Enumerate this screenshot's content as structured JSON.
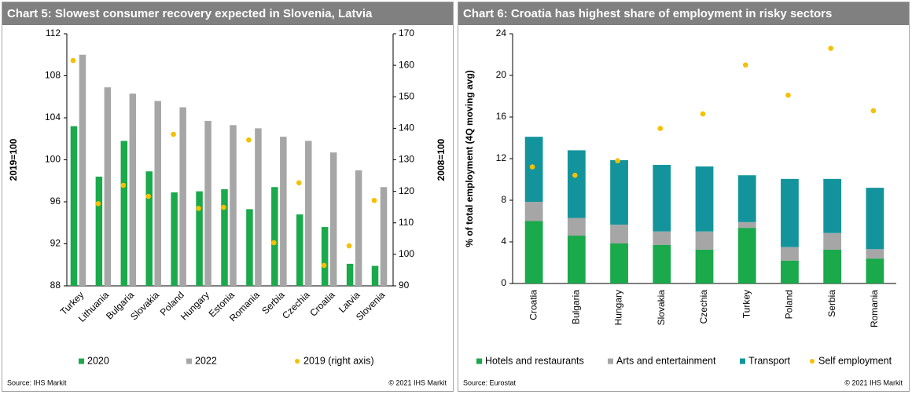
{
  "chart_data": [
    {
      "type": "bar",
      "title": "Chart 5: Slowest consumer recovery expected in Slovenia, Latvia",
      "ylabel": "2019=100",
      "y2label": "2008=100",
      "categories": [
        "Turkey",
        "Lithuania",
        "Bulgaria",
        "Slovakia",
        "Poland",
        "Hungary",
        "Estonia",
        "Romania",
        "Serbia",
        "Czechia",
        "Croatia",
        "Latvia",
        "Slovenia"
      ],
      "series": [
        {
          "name": "2020",
          "type": "bar",
          "color": "#1aa94b",
          "values": [
            103.2,
            98.4,
            101.8,
            98.9,
            96.9,
            97.0,
            97.2,
            95.3,
            97.4,
            94.8,
            93.6,
            90.1,
            89.9
          ]
        },
        {
          "name": "2022",
          "type": "bar",
          "color": "#a6a6a6",
          "values": [
            110.0,
            106.9,
            106.3,
            105.6,
            105.0,
            103.7,
            103.3,
            103.0,
            102.2,
            101.8,
            100.7,
            99.0,
            97.4
          ]
        },
        {
          "name": "2019 (right axis)",
          "type": "scatter",
          "axis": "y2",
          "color": "#f5c000",
          "values": [
            161.5,
            116.1,
            121.9,
            118.4,
            138.1,
            114.6,
            114.9,
            136.3,
            103.7,
            122.7,
            96.5,
            102.7,
            117.1
          ]
        }
      ],
      "ylim": [
        88,
        112
      ],
      "yticks": [
        88,
        92,
        96,
        100,
        104,
        108,
        112
      ],
      "y2lim": [
        90,
        170
      ],
      "y2ticks": [
        90,
        100,
        110,
        120,
        130,
        140,
        150,
        160,
        170
      ],
      "source": "Source: IHS Markit",
      "copyright": "© 2021 IHS Markit"
    },
    {
      "type": "stacked-bar",
      "title": "Chart 6: Croatia has highest share of employment in risky sectors",
      "ylabel": "% of total employment (4Q moving avg)",
      "categories": [
        "Croatia",
        "Bulgaria",
        "Hungary",
        "Slovakia",
        "Czechia",
        "Turkey",
        "Poland",
        "Serbia",
        "Romania"
      ],
      "series": [
        {
          "name": "Hotels and restaurants",
          "type": "bar",
          "color": "#1aa94b",
          "values": [
            6.0,
            4.6,
            3.85,
            3.7,
            3.25,
            5.35,
            2.2,
            3.25,
            2.4
          ]
        },
        {
          "name": "Arts and entertainment",
          "type": "bar",
          "color": "#a6a6a6",
          "values": [
            1.85,
            1.7,
            1.8,
            1.3,
            1.75,
            0.55,
            1.3,
            1.6,
            0.9
          ]
        },
        {
          "name": "Transport",
          "type": "bar",
          "color": "#13949c",
          "values": [
            6.25,
            6.5,
            6.2,
            6.4,
            6.25,
            4.5,
            6.55,
            5.2,
            5.9
          ]
        },
        {
          "name": "Self employment",
          "type": "scatter",
          "color": "#f5c000",
          "values": [
            11.2,
            10.4,
            11.8,
            14.9,
            16.3,
            21.0,
            18.1,
            22.6,
            16.6
          ]
        }
      ],
      "ylim": [
        0,
        24
      ],
      "yticks": [
        0,
        4,
        8,
        12,
        16,
        20,
        24
      ],
      "source": "Source: Eurostat",
      "copyright": "© 2021 IHS Markit"
    }
  ]
}
